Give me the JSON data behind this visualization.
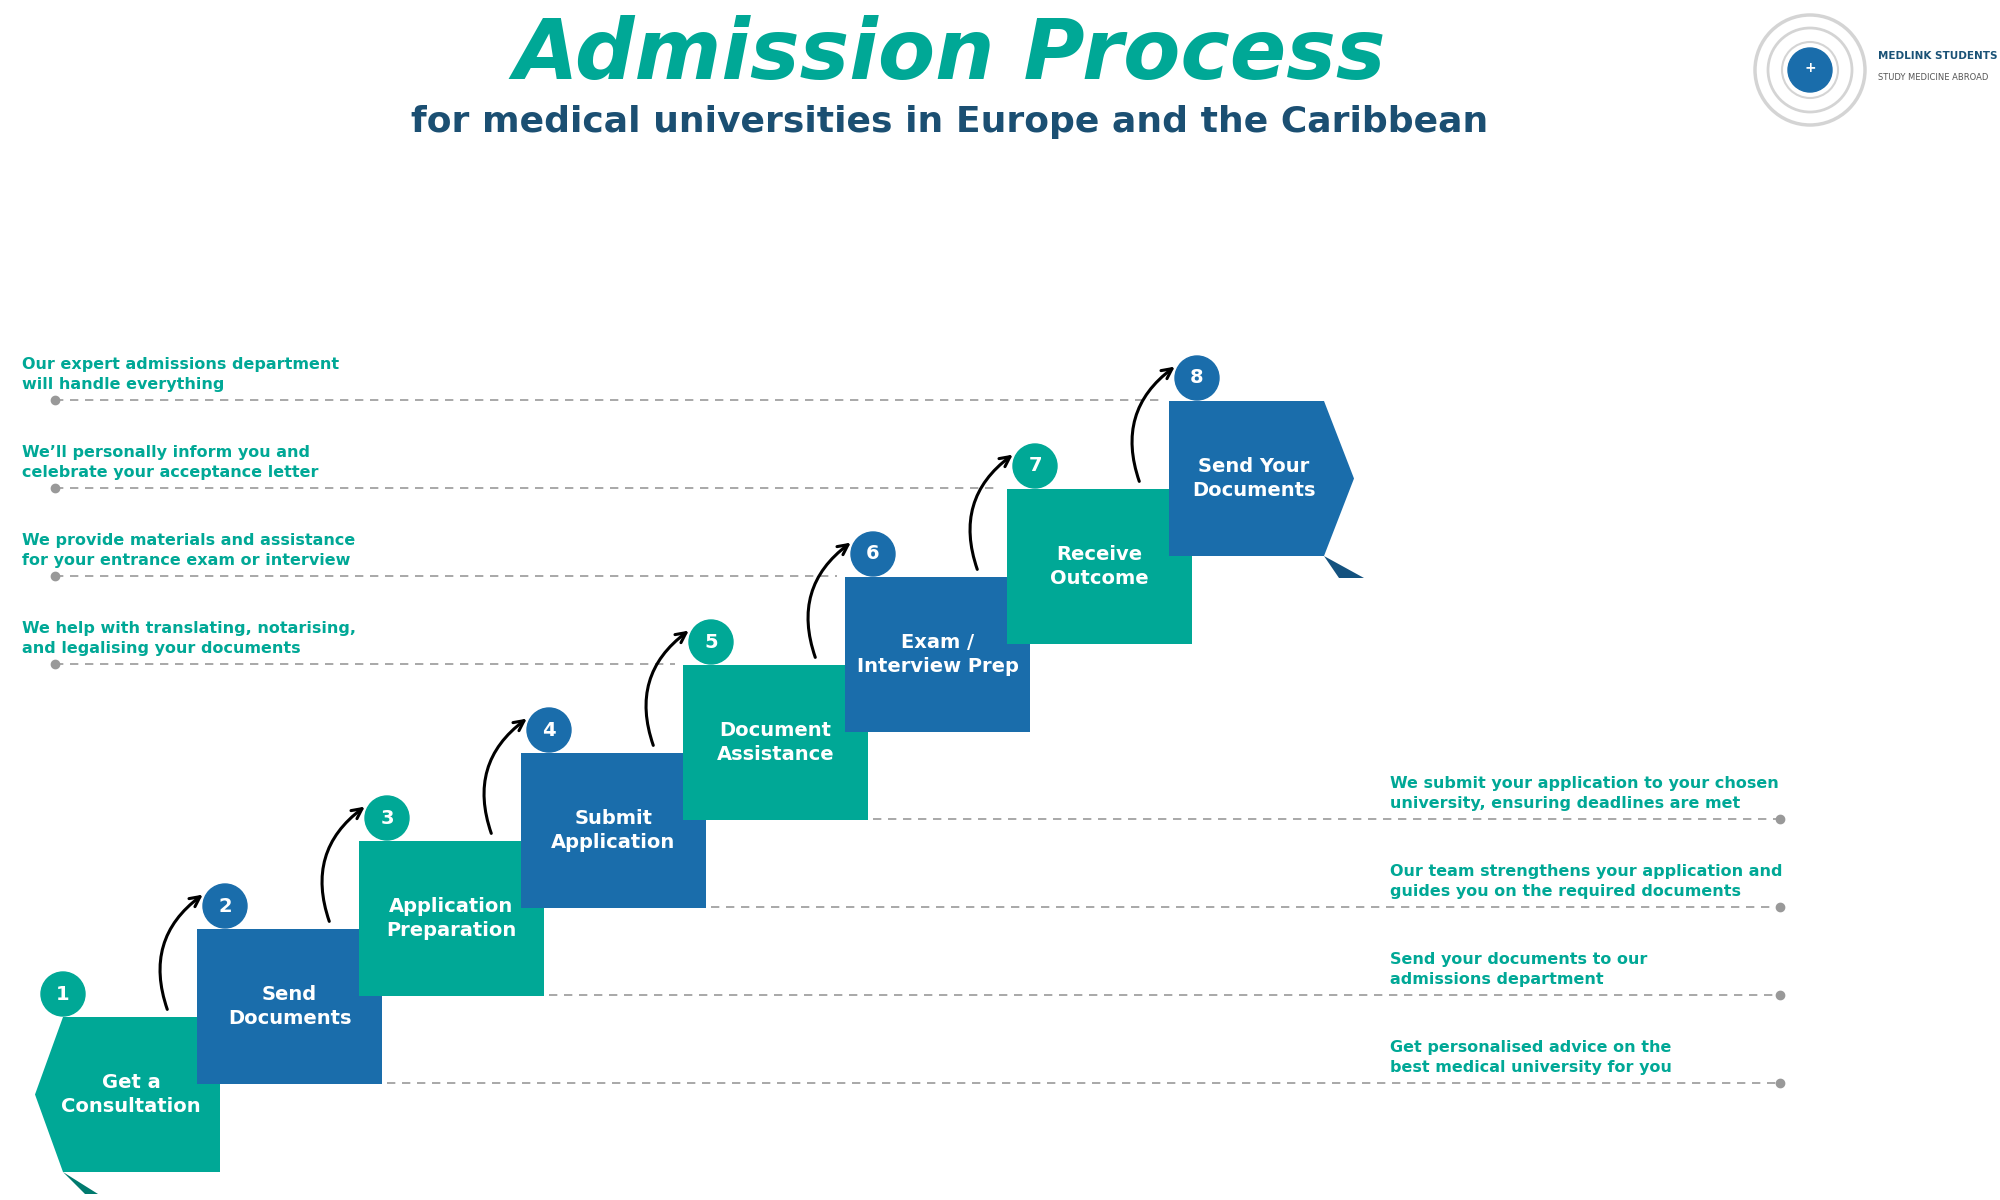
{
  "title": "Admission Process",
  "subtitle": "for medical universities in Europe and the Caribbean",
  "title_color": "#00A896",
  "subtitle_color": "#1B4F72",
  "bg_color": "#FFFFFF",
  "teal": "#00A896",
  "blue": "#1A6DAB",
  "dark_teal": "#007A6E",
  "dark_blue": "#14527F",
  "steps": [
    {
      "num": "1",
      "label": "Get a\nConsultation",
      "color": "#00A896",
      "circle": "#00A896",
      "type": "banner_left"
    },
    {
      "num": "2",
      "label": "Send\nDocuments",
      "color": "#1A6DAB",
      "circle": "#1A6DAB",
      "type": "rect"
    },
    {
      "num": "3",
      "label": "Application\nPreparation",
      "color": "#00A896",
      "circle": "#00A896",
      "type": "rect"
    },
    {
      "num": "4",
      "label": "Submit\nApplication",
      "color": "#1A6DAB",
      "circle": "#1A6DAB",
      "type": "rect"
    },
    {
      "num": "5",
      "label": "Document\nAssistance",
      "color": "#00A896",
      "circle": "#00A896",
      "type": "rect"
    },
    {
      "num": "6",
      "label": "Exam /\nInterview Prep",
      "color": "#1A6DAB",
      "circle": "#1A6DAB",
      "type": "rect"
    },
    {
      "num": "7",
      "label": "Receive\nOutcome",
      "color": "#00A896",
      "circle": "#00A896",
      "type": "rect"
    },
    {
      "num": "8",
      "label": "Send Your\nDocuments",
      "color": "#1A6DAB",
      "circle": "#1A6DAB",
      "type": "banner_right"
    }
  ],
  "left_annotations": [
    "Our expert admissions department\nwill handle everything",
    "We’ll personally inform you and\ncelebrate your acceptance letter",
    "We provide materials and assistance\nfor your entrance exam or interview",
    "We help with translating, notarising,\nand legalising your documents"
  ],
  "right_annotations": [
    "We submit your application to your chosen\nuniversity, ensuring deadlines are met",
    "Our team strengthens your application and\nguides you on the required documents",
    "Send your documents to our\nadmissions department",
    "Get personalised advice on the\nbest medical university for you"
  ]
}
